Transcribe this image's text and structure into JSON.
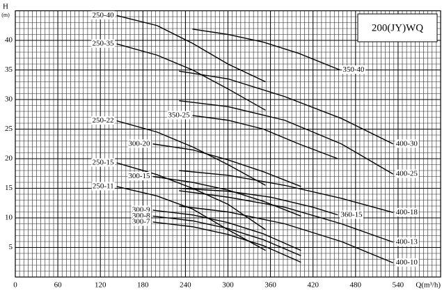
{
  "chart_data": {
    "type": "line",
    "title": "200(JY)WQ",
    "x_label": "Q(m³/h)",
    "y_label": "H",
    "y_unit": "(m)",
    "color": "#000000",
    "grid": true,
    "minor_grid": {
      "x": 6,
      "y": 1
    },
    "xlim": [
      0,
      600
    ],
    "ylim": [
      0,
      45
    ],
    "xticks": [
      0,
      60,
      120,
      180,
      240,
      300,
      360,
      420,
      480,
      540
    ],
    "yticks": [
      5,
      10,
      15,
      20,
      25,
      30,
      35,
      40
    ],
    "series": [
      {
        "name": "250-40",
        "x": [
          143,
          200,
          250,
          300,
          353
        ],
        "values": [
          44.2,
          42.5,
          39.5,
          36,
          33
        ]
      },
      {
        "name": "250-35",
        "x": [
          143,
          200,
          250,
          300,
          353
        ],
        "values": [
          39.4,
          37.5,
          35,
          31.8,
          28.2
        ]
      },
      {
        "name": "350-40",
        "x": [
          250,
          300,
          350,
          400,
          458
        ],
        "values": [
          41.9,
          41,
          39.7,
          37.8,
          35
        ]
      },
      {
        "name": "400-30",
        "x": [
          231,
          300,
          380,
          460,
          533
        ],
        "values": [
          34.8,
          33.5,
          30.5,
          26.8,
          22.5
        ]
      },
      {
        "name": "400-25",
        "x": [
          231,
          300,
          380,
          460,
          533
        ],
        "values": [
          29.8,
          28.8,
          26.5,
          22.5,
          17.4
        ]
      },
      {
        "name": "350-25",
        "x": [
          250,
          300,
          350,
          400,
          455
        ],
        "values": [
          27.3,
          26.5,
          25,
          22.5,
          20
        ]
      },
      {
        "name": "250-22",
        "x": [
          143,
          200,
          250,
          300,
          353
        ],
        "values": [
          26.4,
          24.5,
          22,
          19,
          15.5
        ]
      },
      {
        "name": "300-20",
        "x": [
          194,
          250,
          300,
          350,
          403
        ],
        "values": [
          22.5,
          21.5,
          19.8,
          17.8,
          15.3
        ]
      },
      {
        "name": "400-18",
        "x": [
          231,
          300,
          380,
          460,
          533
        ],
        "values": [
          18,
          17.2,
          15.5,
          13.3,
          10.9
        ]
      },
      {
        "name": "250-15",
        "x": [
          143,
          200,
          250,
          300,
          353
        ],
        "values": [
          19.3,
          17.3,
          15,
          12.3,
          8
        ]
      },
      {
        "name": "300-15",
        "x": [
          194,
          250,
          300,
          350,
          403
        ],
        "values": [
          17,
          16,
          14.7,
          12.8,
          10.3
        ]
      },
      {
        "name": "360-15",
        "x": [
          231,
          300,
          360,
          420,
          455
        ],
        "values": [
          15,
          14.5,
          13.5,
          11.8,
          10.5
        ]
      },
      {
        "name": "400-13",
        "x": [
          231,
          300,
          380,
          460,
          533
        ],
        "values": [
          14.6,
          13.5,
          11.8,
          9,
          5.9
        ]
      },
      {
        "name": "250-11",
        "x": [
          143,
          200,
          250,
          300,
          353
        ],
        "values": [
          15.3,
          13.7,
          11.5,
          8,
          4.5
        ]
      },
      {
        "name": "300-9",
        "x": [
          194,
          250,
          300,
          350,
          403
        ],
        "values": [
          11.3,
          10.5,
          9.2,
          7.3,
          4.5
        ]
      },
      {
        "name": "300-8",
        "x": [
          194,
          250,
          300,
          350,
          403
        ],
        "values": [
          10.3,
          9.5,
          8.2,
          6.3,
          3.6
        ]
      },
      {
        "name": "300-7",
        "x": [
          194,
          250,
          300,
          350,
          403
        ],
        "values": [
          9.3,
          8.5,
          7.2,
          5.3,
          2.5
        ]
      },
      {
        "name": "400-10",
        "x": [
          231,
          300,
          380,
          460,
          533
        ],
        "values": [
          12,
          11,
          9,
          6,
          2.4
        ]
      }
    ]
  }
}
